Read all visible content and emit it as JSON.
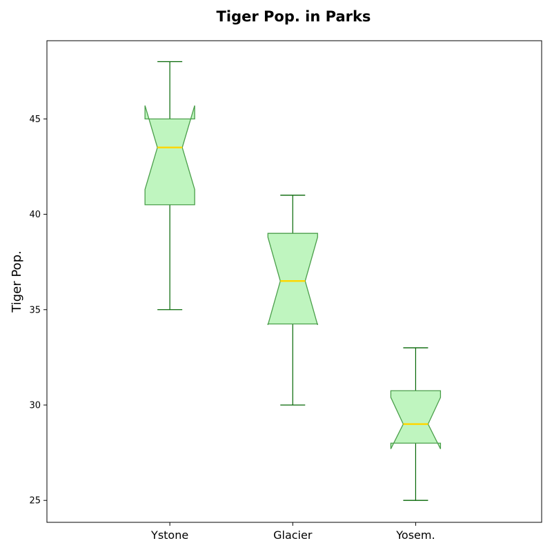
{
  "chart_data": {
    "type": "box",
    "title": "Tiger Pop. in Parks",
    "ylabel": "Tiger Pop.",
    "xlabel": "",
    "ylim": [
      23.85,
      49.1
    ],
    "yticks": [
      25,
      30,
      35,
      40,
      45
    ],
    "notched": true,
    "colors": {
      "box_fill": "#bff5bf",
      "box_edge": "#4a9e4a",
      "whisker": "#006400",
      "median": "#ffd700"
    },
    "categories": [
      "Ystone",
      "Glacier",
      "Yosem."
    ],
    "boxes": [
      {
        "category": "Ystone",
        "whislo": 35,
        "q1": 40.5,
        "med": 43.5,
        "q3": 45,
        "whishi": 48,
        "notch_lo": 41.3,
        "notch_hi": 45.7
      },
      {
        "category": "Glacier",
        "whislo": 30,
        "q1": 34.25,
        "med": 36.5,
        "q3": 39,
        "whishi": 41,
        "notch_lo": 34.2,
        "notch_hi": 38.8
      },
      {
        "category": "Yosem.",
        "whislo": 25,
        "q1": 28,
        "med": 29,
        "q3": 30.75,
        "whishi": 33,
        "notch_lo": 27.7,
        "notch_hi": 30.4
      }
    ]
  }
}
